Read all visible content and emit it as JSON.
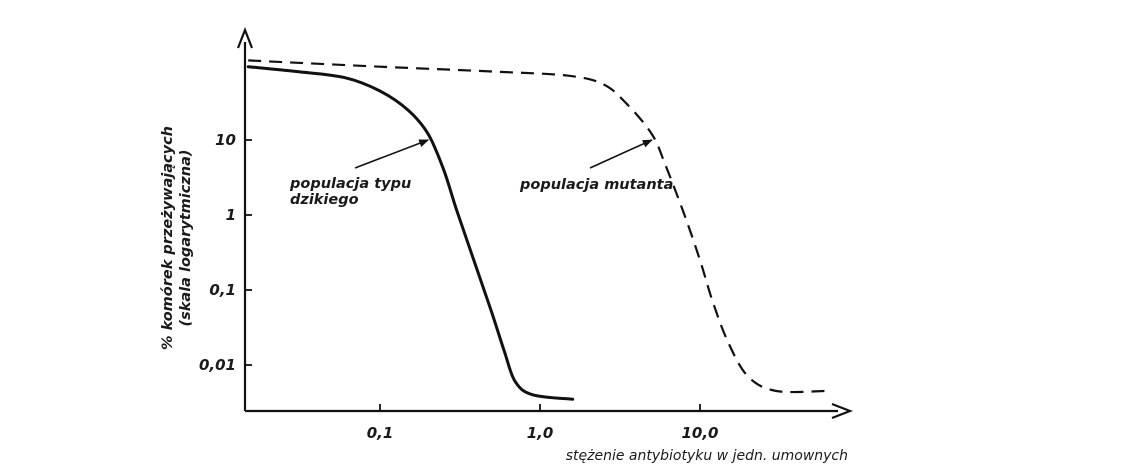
{
  "chart_data": {
    "type": "line",
    "xlabel": "stężenie antybiotyku w jedn. umownych",
    "ylabel_line1": "% komórek przeżywających",
    "ylabel_line2": "(skala logarytmiczna)",
    "x_scale": "log",
    "y_scale": "log",
    "xlim": [
      0.015,
      70
    ],
    "ylim": [
      0.0025,
      100
    ],
    "x_ticks": [
      {
        "value": 0.1,
        "label": "0,1"
      },
      {
        "value": 1.0,
        "label": "1,0"
      },
      {
        "value": 10.0,
        "label": "10,0"
      }
    ],
    "y_ticks": [
      {
        "value": 10,
        "label": "10"
      },
      {
        "value": 1,
        "label": "1"
      },
      {
        "value": 0.1,
        "label": "0,1"
      },
      {
        "value": 0.01,
        "label": "0,01"
      }
    ],
    "grid": false,
    "legend": "none",
    "series": [
      {
        "style": "solid",
        "points": [
          [
            0.015,
            95
          ],
          [
            0.03,
            82
          ],
          [
            0.06,
            68
          ],
          [
            0.1,
            45
          ],
          [
            0.15,
            25
          ],
          [
            0.2,
            12
          ],
          [
            0.25,
            4
          ],
          [
            0.3,
            1.2
          ],
          [
            0.4,
            0.2
          ],
          [
            0.5,
            0.05
          ],
          [
            0.6,
            0.015
          ],
          [
            0.7,
            0.006
          ],
          [
            0.9,
            0.004
          ],
          [
            1.6,
            0.0035
          ]
        ]
      },
      {
        "style": "dashed",
        "points": [
          [
            0.015,
            115
          ],
          [
            0.1,
            95
          ],
          [
            0.5,
            82
          ],
          [
            1.5,
            72
          ],
          [
            2.5,
            55
          ],
          [
            3.5,
            30
          ],
          [
            5.0,
            12
          ],
          [
            6.0,
            5
          ],
          [
            8.0,
            1.0
          ],
          [
            10.0,
            0.25
          ],
          [
            12.0,
            0.07
          ],
          [
            15.0,
            0.02
          ],
          [
            20.0,
            0.007
          ],
          [
            30.0,
            0.0045
          ],
          [
            60.0,
            0.0045
          ]
        ]
      }
    ],
    "annotations": [
      {
        "label_lines": [
          "populacja typu",
          "dzikiego"
        ],
        "target": [
          0.2,
          10
        ]
      },
      {
        "label_lines": [
          "populacja mutanta"
        ],
        "target": [
          5.0,
          10
        ]
      }
    ]
  }
}
